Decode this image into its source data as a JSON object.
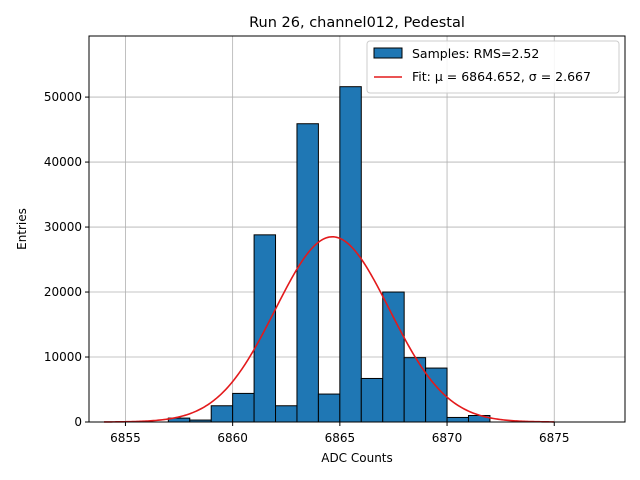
{
  "chart_data": {
    "type": "bar",
    "title": "Run 26, channel012, Pedestal",
    "xlabel": "ADC Counts",
    "ylabel": "Entries",
    "xlim": [
      6853.3,
      6878.3
    ],
    "ylim": [
      0,
      59400
    ],
    "x_ticks": [
      6855,
      6860,
      6865,
      6870,
      6875
    ],
    "y_ticks": [
      0,
      10000,
      20000,
      30000,
      40000,
      50000
    ],
    "grid": true,
    "legend_position": "top-right",
    "histogram": {
      "name": "Samples: RMS=2.52",
      "color": "#1f77b4",
      "edges": [
        6857,
        6858,
        6859,
        6860,
        6861,
        6862,
        6863,
        6864,
        6865,
        6866,
        6867,
        6868,
        6869,
        6870,
        6871,
        6872
      ],
      "values": [
        600,
        300,
        2500,
        4400,
        28800,
        2500,
        45900,
        4300,
        51600,
        6700,
        20000,
        9900,
        8300,
        700,
        1000
      ]
    },
    "fit": {
      "name": "Fit: μ = 6864.652, σ = 2.667",
      "color": "#e31a1c",
      "mu": 6864.652,
      "sigma": 2.667,
      "amplitude": 28500,
      "x_range": [
        6854,
        6875
      ]
    }
  }
}
